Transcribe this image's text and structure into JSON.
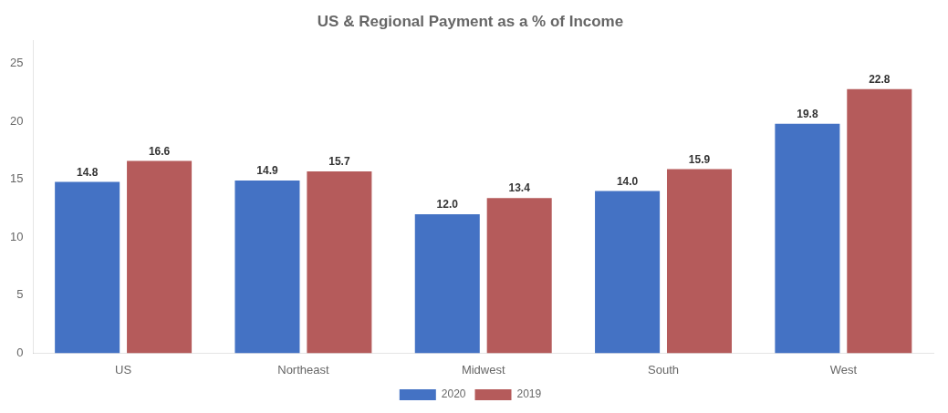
{
  "chart_data": {
    "type": "bar",
    "title": "US & Regional Payment as a % of Income",
    "categories": [
      "US",
      "Northeast",
      "Midwest",
      "South",
      "West"
    ],
    "series": [
      {
        "name": "2020",
        "color": "#4472C4",
        "values": [
          14.8,
          14.9,
          12.0,
          14.0,
          19.8
        ],
        "value_labels": [
          "14.8",
          "14.9",
          "12.0",
          "14.0",
          "19.8"
        ]
      },
      {
        "name": "2019",
        "color": "#B55B5B",
        "values": [
          16.6,
          15.7,
          13.4,
          15.9,
          22.8
        ],
        "value_labels": [
          "16.6",
          "15.7",
          "13.4",
          "15.9",
          "22.8"
        ]
      }
    ],
    "ylim": [
      0,
      27
    ],
    "yticks": [
      0,
      5,
      10,
      15,
      20,
      25
    ],
    "grid": false,
    "legend": "bottom",
    "data_labels": true
  }
}
